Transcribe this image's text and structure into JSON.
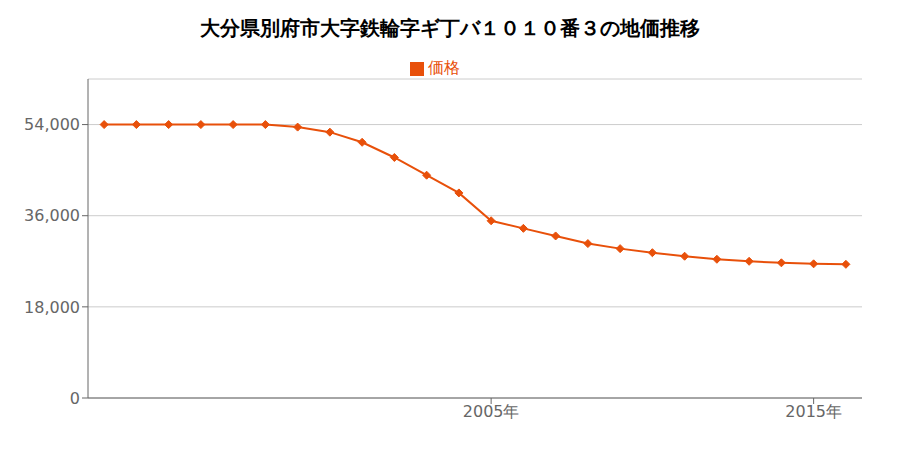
{
  "chart_data": {
    "type": "line",
    "title": "大分県別府市大字鉄輪字ギ丁バ１０１０番３の地価推移",
    "x": [
      1993,
      1994,
      1995,
      1996,
      1997,
      1998,
      1999,
      2000,
      2001,
      2002,
      2003,
      2004,
      2005,
      2006,
      2007,
      2008,
      2009,
      2010,
      2011,
      2012,
      2013,
      2014,
      2015,
      2016
    ],
    "series": [
      {
        "name": "価格",
        "color": "#e8500a",
        "marker": "diamond",
        "values": [
          54000,
          54000,
          54000,
          54000,
          54000,
          54000,
          53500,
          52500,
          50500,
          47500,
          44000,
          40500,
          35000,
          33500,
          32000,
          30500,
          29500,
          28700,
          28000,
          27400,
          27000,
          26700,
          26500,
          26400
        ]
      }
    ],
    "xlim": [
      1992.5,
      2016.5
    ],
    "xticks": [
      {
        "value": 2005,
        "label": "2005年"
      },
      {
        "value": 2015,
        "label": "2015年"
      }
    ],
    "ylim": [
      0,
      63000
    ],
    "yticks": [
      0,
      {
        "value": 18000,
        "label": "18,000"
      },
      {
        "value": 36000,
        "label": "36,000"
      },
      {
        "value": 54000,
        "label": "54,000"
      }
    ],
    "grid": "y",
    "legend": "top"
  }
}
